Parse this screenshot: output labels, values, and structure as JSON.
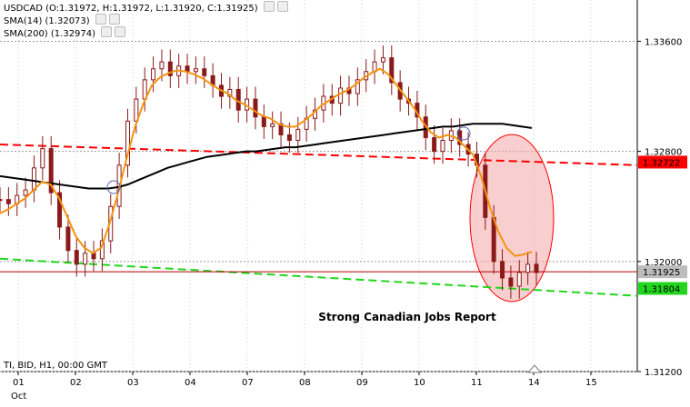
{
  "header": {
    "quote_line": "USDCAD (O:1.31972, H:1.31972, L:1.31920, C:1.31925)",
    "sma14_line": "SMA(14) (1.32073)",
    "sma200_line": "SMA(200) (1.32974)",
    "footer_info": "TI, BID, H1, 00:00 GMT"
  },
  "chart_data": {
    "type": "line",
    "symbol": "USDCAD",
    "timeframe": "H1",
    "ylim": [
      1.312,
      1.339
    ],
    "yticks": [
      "1.33600",
      "1.32800",
      "1.32000",
      "1.31200"
    ],
    "yticks_values": [
      1.336,
      1.328,
      1.32,
      1.312
    ],
    "x_day_labels": [
      "01",
      "02",
      "03",
      "04",
      "07",
      "08",
      "09",
      "10",
      "11",
      "14",
      "15"
    ],
    "x_month_label": "Oct",
    "price_series": {
      "name": "Close",
      "color": "#8b1a1a",
      "values": [
        1.3245,
        1.3242,
        1.3248,
        1.3252,
        1.3268,
        1.3282,
        1.325,
        1.3225,
        1.3208,
        1.3198,
        1.3206,
        1.3202,
        1.3215,
        1.324,
        1.327,
        1.3302,
        1.3318,
        1.3332,
        1.334,
        1.3345,
        1.3335,
        1.3342,
        1.3338,
        1.334,
        1.3335,
        1.3328,
        1.332,
        1.3325,
        1.331,
        1.3318,
        1.3305,
        1.3298,
        1.33,
        1.3292,
        1.3288,
        1.3296,
        1.3304,
        1.331,
        1.332,
        1.3315,
        1.3326,
        1.3322,
        1.3332,
        1.3338,
        1.3345,
        1.3348,
        1.333,
        1.3318,
        1.3315,
        1.3305,
        1.329,
        1.328,
        1.3288,
        1.3295,
        1.3285,
        1.3278,
        1.327,
        1.3232,
        1.32,
        1.3188,
        1.3182,
        1.3192,
        1.3198,
        1.3192
      ]
    },
    "sma14": {
      "name": "SMA(14)",
      "color": "#f4930f",
      "values": [
        1.3235,
        1.3238,
        1.3242,
        1.3246,
        1.3252,
        1.3258,
        1.3256,
        1.3246,
        1.3232,
        1.3218,
        1.321,
        1.3206,
        1.321,
        1.3228,
        1.325,
        1.3275,
        1.3298,
        1.3315,
        1.3328,
        1.3334,
        1.3337,
        1.3339,
        1.3338,
        1.3336,
        1.3333,
        1.3329,
        1.3325,
        1.3322,
        1.3317,
        1.3314,
        1.331,
        1.3306,
        1.3304,
        1.33,
        1.3298,
        1.3298,
        1.3302,
        1.3307,
        1.3313,
        1.3317,
        1.3321,
        1.3324,
        1.3328,
        1.3333,
        1.3337,
        1.334,
        1.3336,
        1.3328,
        1.332,
        1.3312,
        1.3302,
        1.3294,
        1.329,
        1.3292,
        1.329,
        1.3284,
        1.3278,
        1.3262,
        1.324,
        1.3222,
        1.321,
        1.3204,
        1.3205,
        1.3207
      ]
    },
    "sma200": {
      "name": "SMA(200)",
      "color": "#000000",
      "values": [
        1.3262,
        1.3261,
        1.326,
        1.3259,
        1.3258,
        1.3257,
        1.3256,
        1.3255,
        1.3254,
        1.3253,
        1.3253,
        1.3253,
        1.3254,
        1.3256,
        1.3259,
        1.3262,
        1.3265,
        1.3268,
        1.327,
        1.3272,
        1.3274,
        1.3276,
        1.3277,
        1.3278,
        1.3279,
        1.328,
        1.328,
        1.3281,
        1.3282,
        1.3283,
        1.3283,
        1.3284,
        1.3285,
        1.3286,
        1.3287,
        1.3288,
        1.3289,
        1.329,
        1.3291,
        1.3292,
        1.3293,
        1.3294,
        1.3295,
        1.3296,
        1.3297,
        1.3298,
        1.3298,
        1.3299,
        1.33,
        1.33,
        1.33,
        1.33,
        1.3299,
        1.3298,
        1.3297
      ]
    },
    "trendlines": [
      {
        "name": "upper-trendline",
        "color": "#ff0000",
        "y_start": 1.3285,
        "y_end": 1.327
      },
      {
        "name": "lower-trendline",
        "color": "#22d61e",
        "y_start": 1.3202,
        "y_end": 1.3175
      }
    ],
    "horizontal_levels": [
      {
        "name": "current-bid-level",
        "value": 1.31925,
        "color": "#b00000"
      }
    ],
    "price_tags": [
      {
        "label": "1.32722",
        "value": 1.32722,
        "color": "#ff0000"
      },
      {
        "label": "1.31925",
        "value": 1.31925,
        "color": "#bdbdbd"
      },
      {
        "label": "1.31804",
        "value": 1.31804,
        "color": "#22d61e"
      }
    ],
    "annotation": "Strong Canadian Jobs Report",
    "highlight_ellipse_color": "#f4a6a6"
  }
}
